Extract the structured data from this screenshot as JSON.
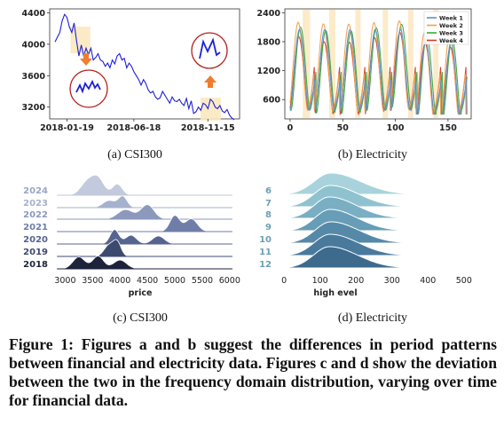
{
  "figure_caption": "Figure 1: Figures a and b suggest the differences in period patterns between financial and electricity data. Figures c and d show the deviation between the two in the frequency domain distribution, varying over time for financial data.",
  "colors": {
    "csi_line": "#1f1fd6",
    "highlight": "#fbe8c0",
    "arrow": "#ef7d2e",
    "circle": "#b22222",
    "ridge_c_dark": "#1e2438",
    "ridge_c_light": "#c6cde0",
    "ridge_d_dark": "#2f5f80",
    "ridge_d_light": "#bcdde5"
  },
  "chart_data": [
    {
      "id": "a",
      "type": "line",
      "caption": "(a) CSI300",
      "x_ticks": [
        "2018-01-19",
        "2018-06-18",
        "2018-11-15"
      ],
      "y_ticks": [
        3200,
        3600,
        4000,
        4400
      ],
      "ylim": [
        3050,
        4450
      ],
      "series": [
        {
          "values": [
            4030,
            4090,
            4150,
            4300,
            4380,
            4340,
            4220,
            4150,
            4270,
            4050,
            3850,
            3990,
            3850,
            3950,
            3870,
            3950,
            3800,
            3830,
            3880,
            3800,
            3780,
            3720,
            3760,
            3700,
            3800,
            3750,
            3850,
            3880,
            3800,
            3820,
            3700,
            3760,
            3720,
            3650,
            3600,
            3550,
            3480,
            3550,
            3500,
            3420,
            3380,
            3400,
            3330,
            3300,
            3320,
            3400,
            3350,
            3300,
            3250,
            3330,
            3280,
            3270,
            3300,
            3250,
            3220,
            3310,
            3180,
            3280,
            3120,
            3140,
            3200,
            3160,
            3250,
            3230,
            3180,
            3300,
            3270,
            3200,
            3180,
            3220,
            3150,
            3130,
            3170,
            3100,
            3060,
            3040
          ]
        }
      ],
      "annotation_note": "Two red-circled insets with orange arrows magnify highlighted intervals"
    },
    {
      "id": "b",
      "type": "line",
      "caption": "(b) Electricity",
      "x_ticks": [
        0,
        50,
        100,
        150
      ],
      "y_ticks": [
        600,
        1200,
        1800,
        2400
      ],
      "xlim": [
        -5,
        172
      ],
      "ylim": [
        200,
        2480
      ],
      "legend": [
        "Week 1",
        "Week 2",
        "Week 3",
        "Week 4"
      ],
      "legend_colors": [
        "#5b8fd0",
        "#f0a050",
        "#3aaa3a",
        "#d63a2e"
      ],
      "highlight_bands": [
        [
          12,
          19
        ],
        [
          37,
          43
        ],
        [
          62,
          67
        ],
        [
          88,
          93
        ],
        [
          112,
          117
        ],
        [
          136,
          141
        ]
      ],
      "period": 24,
      "series": [
        {
          "name": "Week 1",
          "values_note": "daily cycle, peak ~2050"
        },
        {
          "name": "Week 2",
          "values_note": "daily cycle, peak ~2200"
        },
        {
          "name": "Week 3",
          "values_note": "daily cycle, peak ~2100"
        },
        {
          "name": "Week 4",
          "values_note": "daily cycle, peak ~1900"
        }
      ]
    },
    {
      "id": "c",
      "type": "area",
      "caption": "(c) CSI300",
      "xlabel": "price",
      "x_ticks": [
        3000,
        3500,
        4000,
        4500,
        5000,
        5500,
        6000
      ],
      "xlim": [
        2750,
        6100
      ],
      "rows": [
        {
          "label": "2024",
          "peaks": [
            [
              3400,
              0.8,
              120
            ],
            [
              3600,
              1.0,
              110
            ],
            [
              3950,
              0.7,
              90
            ]
          ]
        },
        {
          "label": "2023",
          "peaks": [
            [
              3800,
              0.45,
              110
            ],
            [
              4050,
              0.7,
              80
            ]
          ]
        },
        {
          "label": "2022",
          "peaks": [
            [
              4100,
              0.6,
              140
            ],
            [
              4500,
              0.9,
              120
            ]
          ]
        },
        {
          "label": "2021",
          "peaks": [
            [
              5000,
              1.0,
              90
            ],
            [
              5300,
              0.8,
              110
            ]
          ]
        },
        {
          "label": "2020",
          "peaks": [
            [
              3900,
              0.9,
              80
            ],
            [
              4200,
              0.55,
              100
            ],
            [
              4700,
              0.5,
              110
            ]
          ]
        },
        {
          "label": "2019",
          "peaks": [
            [
              3800,
              0.7,
              90
            ],
            [
              3950,
              0.85,
              70
            ]
          ]
        },
        {
          "label": "2018",
          "peaks": [
            [
              3250,
              0.75,
              110
            ],
            [
              3600,
              0.8,
              100
            ],
            [
              4000,
              0.55,
              120
            ]
          ]
        }
      ]
    },
    {
      "id": "d",
      "type": "area",
      "caption": "(d) Electricity",
      "xlabel": "high evel",
      "x_ticks": [
        0,
        100,
        200,
        300,
        400,
        500
      ],
      "xlim": [
        -20,
        530
      ],
      "rows": [
        {
          "label": "6",
          "peak": 130,
          "spread": 55
        },
        {
          "label": "7",
          "peak": 128,
          "spread": 52
        },
        {
          "label": "8",
          "peak": 126,
          "spread": 50
        },
        {
          "label": "9",
          "peak": 128,
          "spread": 50
        },
        {
          "label": "10",
          "peak": 130,
          "spread": 52
        },
        {
          "label": "11",
          "peak": 128,
          "spread": 52
        },
        {
          "label": "12",
          "peak": 126,
          "spread": 52
        }
      ]
    }
  ]
}
